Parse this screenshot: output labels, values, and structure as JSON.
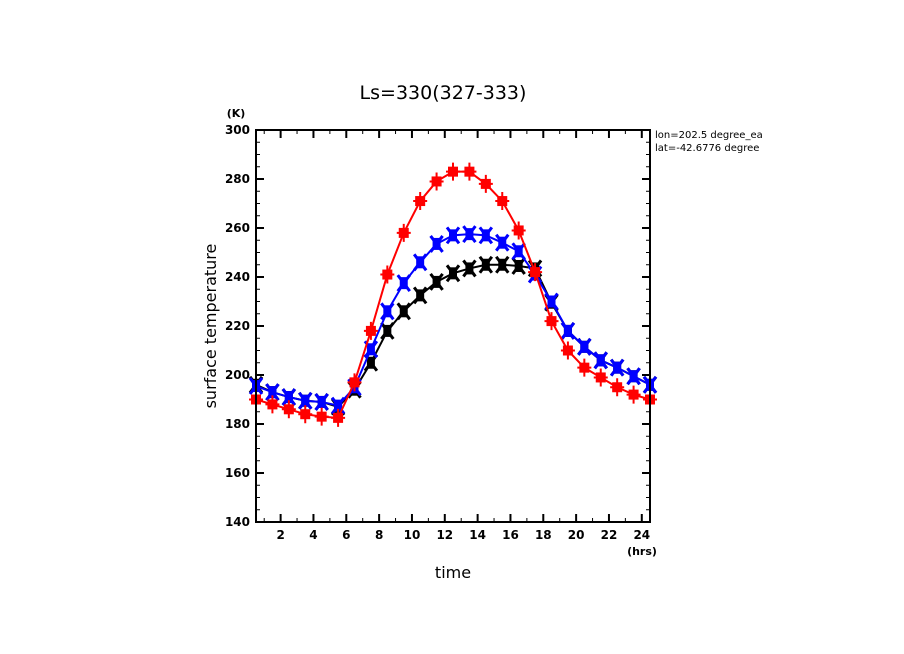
{
  "chart_data": {
    "type": "line",
    "title": "Ls=330(327-333)",
    "xlabel": "time",
    "ylabel": "surface temperature",
    "x_unit": "(hrs)",
    "y_unit": "(K)",
    "xlim": [
      0.5,
      24.5
    ],
    "ylim": [
      140,
      300
    ],
    "xticks": [
      2,
      4,
      6,
      8,
      10,
      12,
      14,
      16,
      18,
      20,
      22,
      24
    ],
    "yticks": [
      140,
      160,
      180,
      200,
      220,
      240,
      260,
      280,
      300
    ],
    "grid": false,
    "annotations": [
      "lon=202.5 degree_ea",
      "lat=-42.6776 degree"
    ],
    "x": [
      0.5,
      1.5,
      2.5,
      3.5,
      4.5,
      5.5,
      6.5,
      7.5,
      8.5,
      9.5,
      10.5,
      11.5,
      12.5,
      13.5,
      14.5,
      15.5,
      16.5,
      17.5,
      18.5,
      19.5,
      20.5,
      21.5,
      22.5,
      23.5,
      24.5
    ],
    "series": [
      {
        "name": "black",
        "color": "#000000",
        "marker": "x",
        "values": [
          196,
          193,
          191,
          189.5,
          189,
          187,
          194,
          205,
          218,
          226,
          232.5,
          238,
          241.5,
          243.5,
          245,
          245,
          244.5,
          243.5,
          229.5,
          218,
          211.5,
          206,
          203,
          199.5,
          196
        ]
      },
      {
        "name": "blue",
        "color": "#0000ff",
        "marker": "x",
        "values": [
          195.5,
          193,
          191,
          189.5,
          189,
          187.5,
          195,
          210.5,
          226,
          237.5,
          246,
          253.5,
          257,
          257.5,
          257,
          254,
          250.5,
          241,
          230,
          218,
          211.5,
          206,
          203,
          199.5,
          196
        ]
      },
      {
        "name": "red",
        "color": "#ff0000",
        "marker": "square-plus",
        "values": [
          190,
          188,
          186,
          184,
          183,
          182.5,
          197,
          218,
          241,
          258,
          271,
          279,
          283,
          283,
          278,
          271,
          259,
          242,
          222,
          210,
          203,
          199,
          195,
          192,
          190
        ]
      }
    ]
  }
}
